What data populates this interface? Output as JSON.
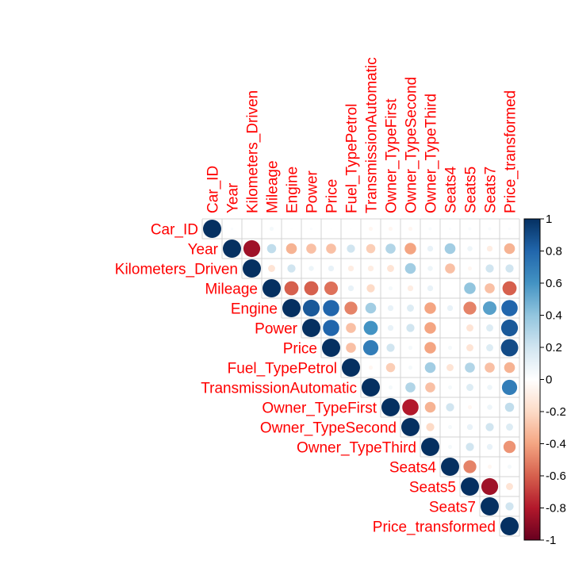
{
  "chart_data": {
    "type": "heatmap",
    "subtype": "correlation-circle-upper",
    "variables": [
      "Car_ID",
      "Year",
      "Kilometers_Driven",
      "Mileage",
      "Engine",
      "Power",
      "Price",
      "Fuel_TypePetrol",
      "TransmissionAutomatic",
      "Owner_TypeFirst",
      "Owner_TypeSecond",
      "Owner_TypeThird",
      "Seats4",
      "Seats5",
      "Seats7",
      "Price_transformed"
    ],
    "matrix": [
      [
        1,
        0.02,
        0.0,
        0.05,
        0.01,
        0.02,
        0.01,
        0.01,
        -0.05,
        -0.05,
        -0.05,
        0.03,
        0.02,
        0.03,
        0.03,
        0.02
      ],
      [
        0.02,
        1,
        -0.85,
        0.25,
        -0.35,
        -0.3,
        -0.3,
        0.2,
        -0.25,
        0.3,
        -0.4,
        0.1,
        0.35,
        0.08,
        -0.1,
        -0.35
      ],
      [
        0.0,
        -0.85,
        1,
        -0.15,
        0.2,
        0.08,
        0.1,
        -0.1,
        -0.1,
        -0.15,
        0.35,
        0.08,
        -0.3,
        -0.05,
        0.2,
        0.2
      ],
      [
        0.05,
        0.25,
        -0.15,
        1,
        -0.6,
        -0.6,
        -0.55,
        0.1,
        -0.2,
        0.05,
        -0.1,
        0.1,
        0.0,
        0.4,
        -0.3,
        -0.6
      ],
      [
        0.01,
        -0.35,
        0.2,
        -0.6,
        1,
        0.85,
        0.8,
        -0.5,
        0.35,
        0.1,
        0.15,
        -0.4,
        0.1,
        -0.5,
        0.55,
        0.8
      ],
      [
        0.02,
        -0.3,
        0.08,
        -0.6,
        0.85,
        1,
        0.8,
        -0.3,
        0.6,
        0.1,
        0.2,
        -0.4,
        0.0,
        -0.15,
        0.15,
        0.85
      ],
      [
        0.01,
        -0.3,
        0.1,
        -0.55,
        0.8,
        0.8,
        1,
        -0.3,
        0.7,
        0.2,
        0.05,
        -0.4,
        0.05,
        -0.15,
        0.15,
        0.9
      ],
      [
        0.01,
        0.2,
        -0.1,
        0.1,
        -0.5,
        -0.3,
        -0.3,
        1,
        -0.05,
        -0.25,
        0.05,
        0.35,
        -0.15,
        0.3,
        -0.3,
        -0.35
      ],
      [
        -0.05,
        -0.25,
        -0.1,
        -0.2,
        0.35,
        0.6,
        0.7,
        -0.05,
        1,
        0.05,
        0.3,
        -0.3,
        0.05,
        0.15,
        0.08,
        0.7
      ],
      [
        -0.05,
        0.3,
        -0.15,
        0.05,
        0.1,
        0.1,
        0.2,
        -0.25,
        0.05,
        1,
        -0.8,
        -0.35,
        0.2,
        -0.05,
        0.08,
        0.25
      ],
      [
        -0.05,
        -0.4,
        0.35,
        -0.1,
        0.15,
        0.2,
        0.05,
        0.05,
        0.3,
        -0.8,
        1,
        -0.2,
        0.05,
        0.1,
        0.2,
        0.15
      ],
      [
        0.03,
        0.1,
        0.08,
        0.1,
        -0.4,
        -0.4,
        -0.4,
        0.35,
        -0.3,
        -0.35,
        -0.2,
        1,
        0.05,
        0.2,
        0.1,
        -0.45
      ],
      [
        0.02,
        0.35,
        -0.3,
        0.0,
        0.1,
        0.0,
        0.05,
        -0.15,
        0.05,
        0.2,
        0.05,
        0.05,
        1,
        -0.5,
        -0.05,
        0.05
      ],
      [
        0.03,
        0.08,
        -0.05,
        0.4,
        -0.5,
        -0.15,
        -0.15,
        0.3,
        0.15,
        -0.05,
        0.1,
        0.2,
        -0.5,
        1,
        -0.85,
        -0.15
      ],
      [
        0.03,
        -0.1,
        0.2,
        -0.3,
        0.55,
        0.15,
        0.15,
        -0.3,
        0.08,
        0.08,
        0.2,
        0.1,
        -0.05,
        -0.85,
        1,
        0.2
      ],
      [
        0.02,
        -0.35,
        0.2,
        -0.6,
        0.8,
        0.85,
        0.9,
        -0.35,
        0.7,
        0.25,
        0.15,
        -0.45,
        0.05,
        -0.15,
        0.2,
        1
      ]
    ],
    "color_scale": {
      "min": -1,
      "max": 1,
      "ticks": [
        "-1",
        "-0.8",
        "-0.6",
        "-0.4",
        "-0.2",
        "0",
        "0.2",
        "0.4",
        "0.6",
        "0.8",
        "1"
      ],
      "stops": [
        "#67001f",
        "#b2182b",
        "#d6604d",
        "#f4a582",
        "#fddbc7",
        "#ffffff",
        "#d1e5f0",
        "#92c5de",
        "#4393c3",
        "#2166ac",
        "#053061"
      ]
    },
    "label_color": "#ff0000",
    "grid_color": "#d3d3d3",
    "legend_position": "right"
  }
}
